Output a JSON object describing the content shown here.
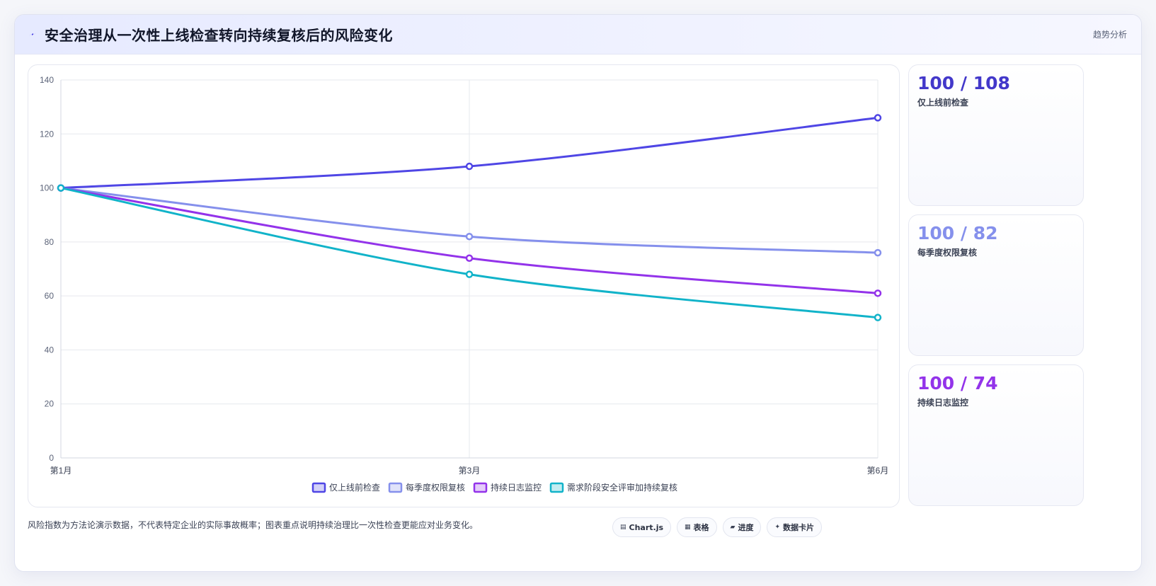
{
  "header": {
    "title": "安全治理从一次性上线检查转向持续复核后的风险变化",
    "icon": "lightning-icon",
    "tag": "趋势分析"
  },
  "chart_data": {
    "type": "line",
    "x": [
      "第1月",
      "第3月",
      "第6月"
    ],
    "ylim": [
      0,
      140
    ],
    "yticks": [
      0,
      20,
      40,
      60,
      80,
      100,
      120,
      140
    ],
    "grid": true,
    "legend_position": "bottom",
    "series": [
      {
        "name": "仅上线前检查",
        "values": [
          100,
          108,
          126
        ],
        "color": "#4f46e5"
      },
      {
        "name": "每季度权限复核",
        "values": [
          100,
          82,
          76
        ],
        "color": "#8590ec"
      },
      {
        "name": "持续日志监控",
        "values": [
          100,
          74,
          61
        ],
        "color": "#9333ea"
      },
      {
        "name": "需求阶段安全评审加持续复核",
        "values": [
          100,
          68,
          52
        ],
        "color": "#11b3c9"
      }
    ]
  },
  "stats": [
    {
      "value": "100 / 108",
      "label": "仅上线前检查",
      "color": "#4338ca"
    },
    {
      "value": "100 / 82",
      "label": "每季度权限复核",
      "color": "#8590ec"
    },
    {
      "value": "100 / 74",
      "label": "持续日志监控",
      "color": "#9333ea"
    }
  ],
  "footer": {
    "note": "风险指数为方法论演示数据，不代表特定企业的实际事故概率；图表重点说明持续治理比一次性检查更能应对业务变化。",
    "chips": [
      {
        "icon": "chart-icon",
        "label": "Chart.js"
      },
      {
        "icon": "table-icon",
        "label": "表格"
      },
      {
        "icon": "progress-icon",
        "label": "进度"
      },
      {
        "icon": "data-card-icon",
        "label": "数据卡片"
      }
    ]
  }
}
